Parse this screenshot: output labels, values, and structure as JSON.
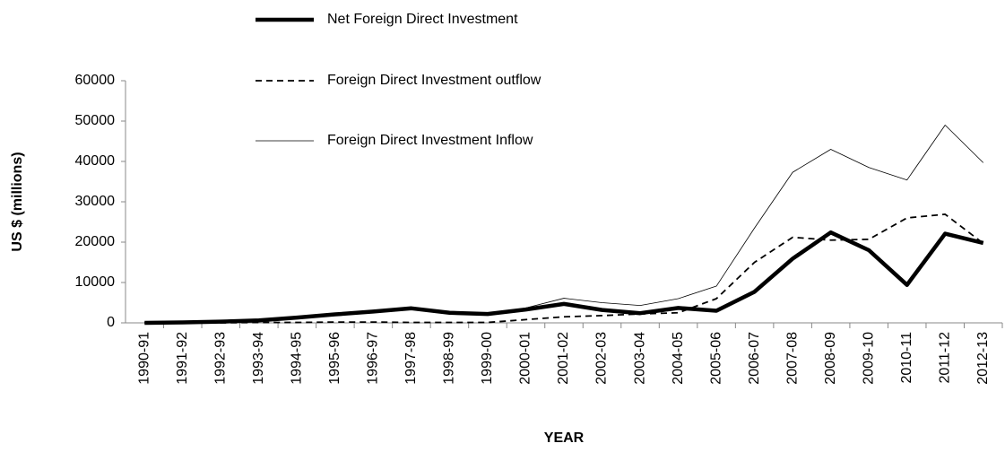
{
  "chart_data": {
    "type": "line",
    "y_label": "US $ (millions)",
    "x_label": "YEAR",
    "categories": [
      "1990-91",
      "1991-92",
      "1992-93",
      "1993-94",
      "1994-95",
      "1995-96",
      "1996-97",
      "1997-98",
      "1998-99",
      "1999-00",
      "2000-01",
      "2001-02",
      "2002-03",
      "2003-04",
      "2004-05",
      "2005-06",
      "2006-07",
      "2007-08",
      "2008-09",
      "2009-10",
      "2010-11",
      "2011-12",
      "2012-13"
    ],
    "series": [
      {
        "name": "Net Foreign Direct Investment",
        "color": "#000000",
        "style": "thick",
        "values": [
          0,
          100,
          300,
          600,
          1300,
          2100,
          2800,
          3600,
          2500,
          2200,
          3300,
          4700,
          3200,
          2400,
          3700,
          3000,
          7700,
          15900,
          22400,
          18000,
          9400,
          22100,
          19800
        ]
      },
      {
        "name": "Foreign Direct Investment outflow",
        "color": "#000000",
        "style": "dashed",
        "values": [
          0,
          0,
          0,
          100,
          100,
          200,
          200,
          100,
          100,
          100,
          800,
          1500,
          1800,
          2200,
          2500,
          6000,
          15000,
          21200,
          20500,
          20700,
          26000,
          26900,
          19700
        ]
      },
      {
        "name": "Foreign Direct Investment Inflow",
        "color": "#000000",
        "style": "thin",
        "values": [
          100,
          100,
          300,
          600,
          1300,
          2100,
          2800,
          3600,
          2600,
          2200,
          3700,
          6100,
          5000,
          4300,
          6000,
          9100,
          23500,
          37300,
          43000,
          38500,
          35400,
          49000,
          39700
        ]
      }
    ],
    "ylim": [
      0,
      60000
    ],
    "yticks": [
      0,
      10000,
      20000,
      30000,
      40000,
      50000,
      60000
    ],
    "grid": false
  }
}
